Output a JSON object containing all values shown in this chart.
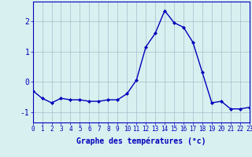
{
  "x": [
    0,
    1,
    2,
    3,
    4,
    5,
    6,
    7,
    8,
    9,
    10,
    11,
    12,
    13,
    14,
    15,
    16,
    17,
    18,
    19,
    20,
    21,
    22,
    23
  ],
  "y": [
    -0.3,
    -0.55,
    -0.7,
    -0.55,
    -0.6,
    -0.6,
    -0.65,
    -0.65,
    -0.6,
    -0.6,
    -0.4,
    0.05,
    1.15,
    1.6,
    2.35,
    1.95,
    1.8,
    1.3,
    0.3,
    -0.7,
    -0.65,
    -0.9,
    -0.9,
    -0.85
  ],
  "line_color": "#0000bb",
  "marker": "D",
  "marker_size": 2.0,
  "linewidth": 1.0,
  "xlabel": "Graphe des températures (°c)",
  "xlim": [
    0,
    23
  ],
  "ylim": [
    -1.35,
    2.65
  ],
  "yticks": [
    -1,
    0,
    1,
    2
  ],
  "xtick_labels": [
    "0",
    "1",
    "2",
    "3",
    "4",
    "5",
    "6",
    "7",
    "8",
    "9",
    "10",
    "11",
    "12",
    "13",
    "14",
    "15",
    "16",
    "17",
    "18",
    "19",
    "20",
    "21",
    "22",
    "23"
  ],
  "bg_color": "#d8f0f0",
  "grid_color": "#aabbcc",
  "axis_color": "#0000bb",
  "tick_color": "#0000bb",
  "label_color": "#0000bb",
  "xlabel_fontsize": 7.0,
  "ytick_fontsize": 7.0,
  "xtick_fontsize": 5.5
}
